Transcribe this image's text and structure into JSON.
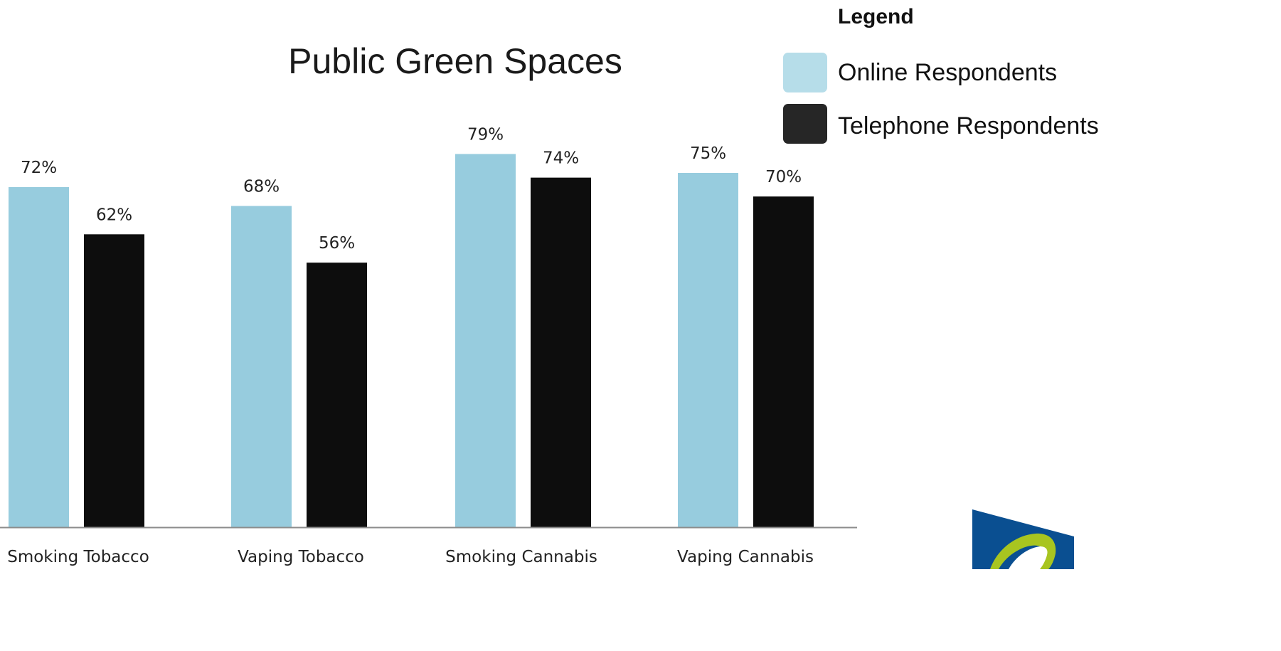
{
  "chart_data": {
    "type": "bar",
    "title": "Public Green Spaces",
    "categories": [
      "Smoking Tobacco",
      "Vaping Tobacco",
      "Smoking Cannabis",
      "Vaping Cannabis"
    ],
    "series": [
      {
        "name": "Online Respondents",
        "values": [
          72,
          68,
          79,
          75
        ],
        "labels": [
          "72%",
          "68%",
          "79%",
          "75%"
        ],
        "color": "#97ccde"
      },
      {
        "name": "Telephone Respondents",
        "values": [
          62,
          56,
          74,
          70
        ],
        "labels": [
          "62%",
          "56%",
          "74%",
          "70%"
        ],
        "color": "#0d0d0d"
      }
    ],
    "ylim": [
      0,
      100
    ],
    "grid": false,
    "legend": {
      "heading": "Legend",
      "placement": "top-right",
      "swatch_colors": [
        "#b6dde9",
        "#262626"
      ]
    },
    "logo_colors": [
      "#0a4f91",
      "#a8c520"
    ]
  }
}
